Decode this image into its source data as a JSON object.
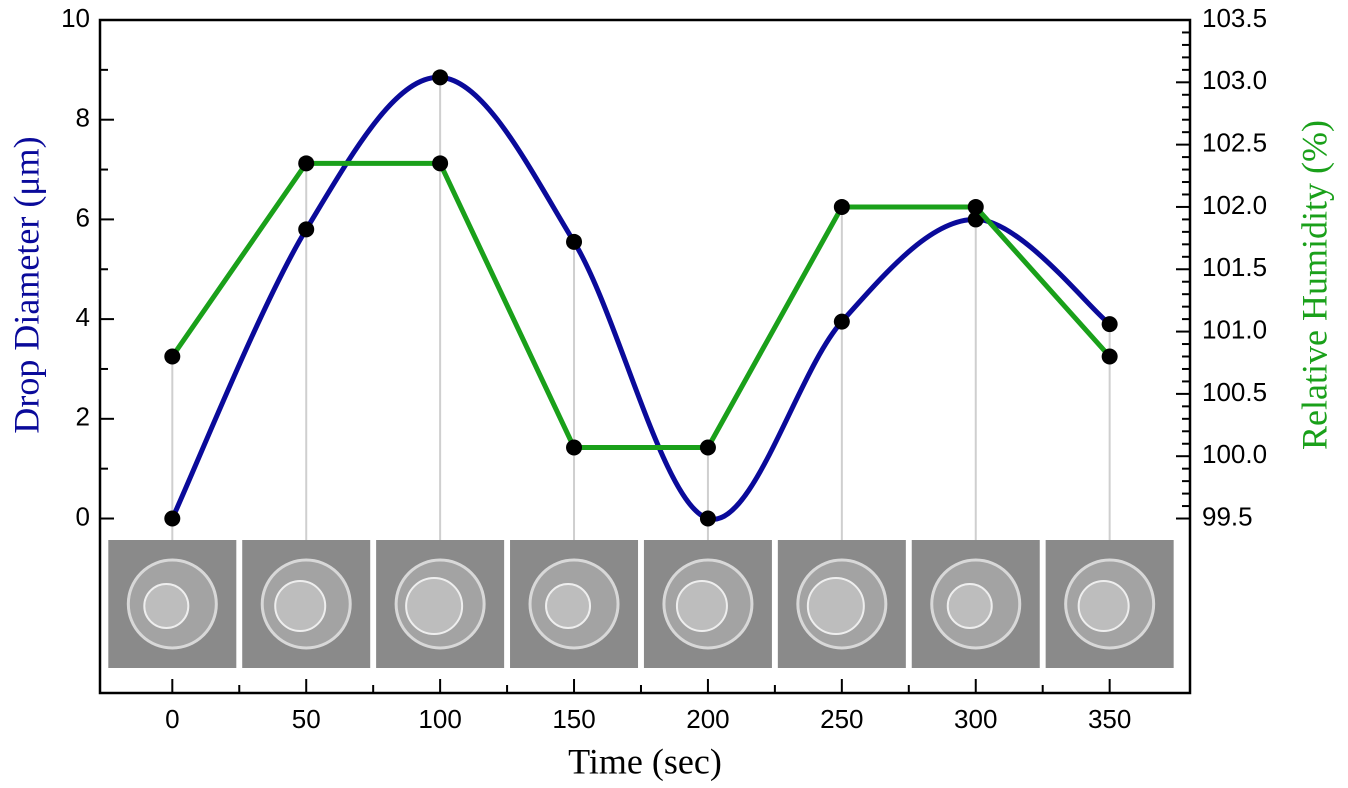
{
  "chart_data": {
    "type": "line",
    "xlabel": "Time (sec)",
    "ylabel": "Drop Diameter (μm)",
    "y2label": "Relative Humidity (%)",
    "x": [
      0,
      50,
      100,
      150,
      200,
      250,
      300,
      350
    ],
    "series": [
      {
        "color": "#0a0a9a",
        "values": [
          0,
          5.8,
          8.85,
          5.55,
          0,
          3.95,
          6.0,
          3.9
        ],
        "smooth": true
      },
      {
        "color": "#1aa01a",
        "values": [
          100.8,
          102.35,
          102.35,
          100.07,
          100.07,
          102.0,
          102.0,
          100.8
        ],
        "axis": "y2"
      }
    ],
    "xlim": [
      -27,
      380
    ],
    "xticks": [
      0,
      50,
      100,
      150,
      200,
      250,
      300,
      350
    ],
    "ylim": [
      -3.5,
      10
    ],
    "yticks": [
      0,
      2,
      4,
      6,
      8,
      10
    ],
    "y2lim": [
      98.1,
      103.5
    ],
    "y2ticks": [
      99.5,
      {
        "value": 100,
        "label": "100.0"
      },
      100.5,
      {
        "value": 101,
        "label": "101.0"
      },
      101.5,
      {
        "value": 102,
        "label": "102.0"
      },
      102.5,
      {
        "value": 103,
        "label": "103.0"
      },
      103.5
    ]
  }
}
